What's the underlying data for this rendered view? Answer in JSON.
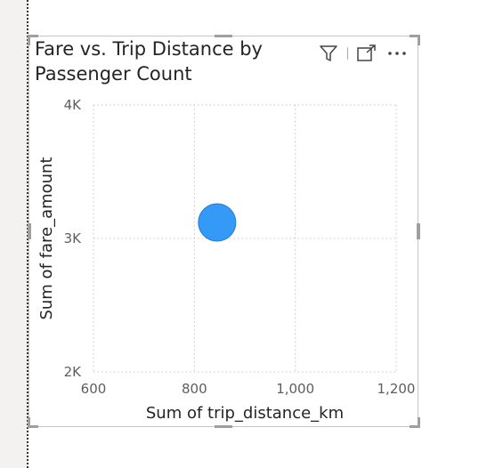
{
  "visual": {
    "title": "Fare vs. Trip Distance by Passenger Count",
    "toolbar": {
      "filter_icon": "filter-icon",
      "focus_icon": "focus-mode-icon",
      "more_icon": "more-options-icon"
    }
  },
  "chart_data": {
    "type": "scatter",
    "xlabel": "Sum of trip_distance_km",
    "ylabel": "Sum of fare_amount",
    "xlim": [
      600,
      1200
    ],
    "ylim": [
      2000,
      4000
    ],
    "x_ticks": [
      {
        "value": 600,
        "label": "600"
      },
      {
        "value": 800,
        "label": "800"
      },
      {
        "value": 1000,
        "label": "1,000"
      },
      {
        "value": 1200,
        "label": "1,200"
      }
    ],
    "y_ticks": [
      {
        "value": 2000,
        "label": "2K"
      },
      {
        "value": 3000,
        "label": "3K"
      },
      {
        "value": 4000,
        "label": "4K"
      }
    ],
    "grid": true,
    "points": [
      {
        "x": 845,
        "y": 3120
      }
    ],
    "colors": {
      "point": "#3599f7",
      "point_stroke": "#1f7fd6",
      "grid": "#c8c6c4"
    }
  }
}
